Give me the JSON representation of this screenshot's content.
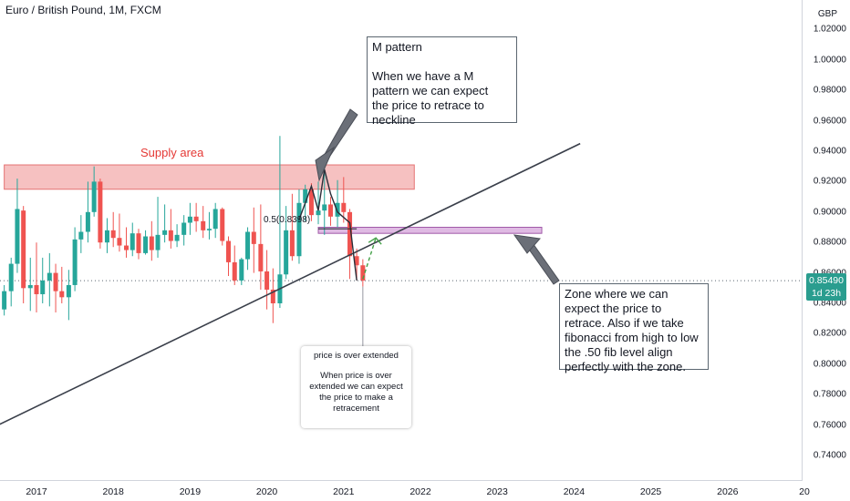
{
  "symbol_title": "Euro / British Pound, 1M, FXCM",
  "currency": "GBP",
  "last_price": {
    "price": "0.85490",
    "countdown": "1d 23h"
  },
  "annotations": {
    "supply_label": "Supply area",
    "fib_label": "0.5(0.8398)",
    "m_pattern_title": "M pattern",
    "m_pattern_lines": [
      "When we have a M",
      "pattern we can expect",
      "the price to retrace to",
      "neckline"
    ],
    "zone_lines": [
      "Zone where we can",
      "expect the price to",
      "retrace. Also if we take",
      "fibonacci from high to low",
      "the .50 fib level align",
      "perfectly with the zone."
    ],
    "bubble_title": "price is over extended",
    "bubble_lines": [
      "When price is over",
      "extended we can expect",
      "the price to make a",
      "retracement"
    ]
  },
  "colors": {
    "up": "#26a69a",
    "down": "#ef5350",
    "supply_zone": "#f4b6b6",
    "target_zone": "#d9aede",
    "badge": "#2a9d8f"
  },
  "chart_data": {
    "type": "candlestick",
    "title": "Euro / British Pound, 1M, FXCM",
    "ylabel": "GBP",
    "ylim": [
      0.73,
      1.03
    ],
    "y_ticks": [
      "0.74000",
      "0.76000",
      "0.78000",
      "0.80000",
      "0.82000",
      "0.84000",
      "0.86000",
      "0.88000",
      "0.90000",
      "0.92000",
      "0.94000",
      "0.96000",
      "0.98000",
      "1.00000",
      "1.02000"
    ],
    "x_ticks": [
      "2017",
      "2018",
      "2019",
      "2020",
      "2021",
      "2022",
      "2023",
      "2024",
      "2025",
      "2026",
      "20"
    ],
    "candles": [
      {
        "x": 2016.58,
        "o": 0.836,
        "h": 0.852,
        "l": 0.832,
        "c": 0.848
      },
      {
        "x": 2016.67,
        "o": 0.848,
        "h": 0.87,
        "l": 0.838,
        "c": 0.866
      },
      {
        "x": 2016.75,
        "o": 0.866,
        "h": 0.922,
        "l": 0.86,
        "c": 0.902
      },
      {
        "x": 2016.83,
        "o": 0.901,
        "h": 0.904,
        "l": 0.84,
        "c": 0.85
      },
      {
        "x": 2016.92,
        "o": 0.85,
        "h": 0.87,
        "l": 0.835,
        "c": 0.852
      },
      {
        "x": 2017.0,
        "o": 0.852,
        "h": 0.88,
        "l": 0.834,
        "c": 0.846
      },
      {
        "x": 2017.08,
        "o": 0.846,
        "h": 0.87,
        "l": 0.84,
        "c": 0.855
      },
      {
        "x": 2017.17,
        "o": 0.855,
        "h": 0.873,
        "l": 0.838,
        "c": 0.86
      },
      {
        "x": 2017.25,
        "o": 0.86,
        "h": 0.866,
        "l": 0.834,
        "c": 0.848
      },
      {
        "x": 2017.33,
        "o": 0.848,
        "h": 0.864,
        "l": 0.84,
        "c": 0.844
      },
      {
        "x": 2017.42,
        "o": 0.844,
        "h": 0.862,
        "l": 0.829,
        "c": 0.852
      },
      {
        "x": 2017.5,
        "o": 0.852,
        "h": 0.89,
        "l": 0.848,
        "c": 0.882
      },
      {
        "x": 2017.58,
        "o": 0.882,
        "h": 0.898,
        "l": 0.873,
        "c": 0.887
      },
      {
        "x": 2017.67,
        "o": 0.887,
        "h": 0.92,
        "l": 0.88,
        "c": 0.9
      },
      {
        "x": 2017.75,
        "o": 0.9,
        "h": 0.93,
        "l": 0.897,
        "c": 0.92
      },
      {
        "x": 2017.83,
        "o": 0.92,
        "h": 0.922,
        "l": 0.876,
        "c": 0.88
      },
      {
        "x": 2017.92,
        "o": 0.88,
        "h": 0.896,
        "l": 0.873,
        "c": 0.888
      },
      {
        "x": 2018.0,
        "o": 0.888,
        "h": 0.9,
        "l": 0.877,
        "c": 0.883
      },
      {
        "x": 2018.08,
        "o": 0.883,
        "h": 0.899,
        "l": 0.874,
        "c": 0.878
      },
      {
        "x": 2018.17,
        "o": 0.878,
        "h": 0.89,
        "l": 0.87,
        "c": 0.875
      },
      {
        "x": 2018.25,
        "o": 0.875,
        "h": 0.893,
        "l": 0.871,
        "c": 0.886
      },
      {
        "x": 2018.33,
        "o": 0.886,
        "h": 0.889,
        "l": 0.869,
        "c": 0.873
      },
      {
        "x": 2018.42,
        "o": 0.873,
        "h": 0.888,
        "l": 0.872,
        "c": 0.884
      },
      {
        "x": 2018.5,
        "o": 0.884,
        "h": 0.894,
        "l": 0.868,
        "c": 0.875
      },
      {
        "x": 2018.58,
        "o": 0.875,
        "h": 0.91,
        "l": 0.87,
        "c": 0.885
      },
      {
        "x": 2018.67,
        "o": 0.885,
        "h": 0.905,
        "l": 0.88,
        "c": 0.888
      },
      {
        "x": 2018.75,
        "o": 0.888,
        "h": 0.902,
        "l": 0.876,
        "c": 0.881
      },
      {
        "x": 2018.83,
        "o": 0.881,
        "h": 0.892,
        "l": 0.877,
        "c": 0.885
      },
      {
        "x": 2018.92,
        "o": 0.885,
        "h": 0.898,
        "l": 0.878,
        "c": 0.893
      },
      {
        "x": 2019.0,
        "o": 0.893,
        "h": 0.906,
        "l": 0.885,
        "c": 0.897
      },
      {
        "x": 2019.08,
        "o": 0.897,
        "h": 0.906,
        "l": 0.887,
        "c": 0.894
      },
      {
        "x": 2019.17,
        "o": 0.894,
        "h": 0.904,
        "l": 0.883,
        "c": 0.888
      },
      {
        "x": 2019.25,
        "o": 0.888,
        "h": 0.9,
        "l": 0.882,
        "c": 0.889
      },
      {
        "x": 2019.33,
        "o": 0.889,
        "h": 0.906,
        "l": 0.883,
        "c": 0.902
      },
      {
        "x": 2019.42,
        "o": 0.902,
        "h": 0.903,
        "l": 0.878,
        "c": 0.881
      },
      {
        "x": 2019.5,
        "o": 0.881,
        "h": 0.884,
        "l": 0.858,
        "c": 0.867
      },
      {
        "x": 2019.58,
        "o": 0.867,
        "h": 0.878,
        "l": 0.852,
        "c": 0.855
      },
      {
        "x": 2019.67,
        "o": 0.855,
        "h": 0.87,
        "l": 0.852,
        "c": 0.869
      },
      {
        "x": 2019.75,
        "o": 0.869,
        "h": 0.89,
        "l": 0.862,
        "c": 0.887
      },
      {
        "x": 2019.83,
        "o": 0.887,
        "h": 0.903,
        "l": 0.86,
        "c": 0.879
      },
      {
        "x": 2019.92,
        "o": 0.879,
        "h": 0.905,
        "l": 0.849,
        "c": 0.861
      },
      {
        "x": 2020.0,
        "o": 0.861,
        "h": 0.875,
        "l": 0.836,
        "c": 0.849
      },
      {
        "x": 2020.08,
        "o": 0.849,
        "h": 0.863,
        "l": 0.827,
        "c": 0.84
      },
      {
        "x": 2020.17,
        "o": 0.84,
        "h": 0.95,
        "l": 0.837,
        "c": 0.859
      },
      {
        "x": 2020.25,
        "o": 0.859,
        "h": 0.904,
        "l": 0.856,
        "c": 0.888
      },
      {
        "x": 2020.33,
        "o": 0.888,
        "h": 0.912,
        "l": 0.868,
        "c": 0.871
      },
      {
        "x": 2020.42,
        "o": 0.871,
        "h": 0.915,
        "l": 0.866,
        "c": 0.906
      },
      {
        "x": 2020.5,
        "o": 0.906,
        "h": 0.918,
        "l": 0.894,
        "c": 0.915
      },
      {
        "x": 2020.58,
        "o": 0.915,
        "h": 0.919,
        "l": 0.894,
        "c": 0.898
      },
      {
        "x": 2020.67,
        "o": 0.898,
        "h": 0.92,
        "l": 0.892,
        "c": 0.901
      },
      {
        "x": 2020.75,
        "o": 0.901,
        "h": 0.93,
        "l": 0.885,
        "c": 0.905
      },
      {
        "x": 2020.83,
        "o": 0.905,
        "h": 0.91,
        "l": 0.891,
        "c": 0.897
      },
      {
        "x": 2020.92,
        "o": 0.897,
        "h": 0.921,
        "l": 0.89,
        "c": 0.906
      },
      {
        "x": 2021.0,
        "o": 0.906,
        "h": 0.923,
        "l": 0.893,
        "c": 0.9
      },
      {
        "x": 2021.08,
        "o": 0.9,
        "h": 0.902,
        "l": 0.856,
        "c": 0.871
      },
      {
        "x": 2021.17,
        "o": 0.871,
        "h": 0.876,
        "l": 0.855,
        "c": 0.865
      },
      {
        "x": 2021.25,
        "o": 0.865,
        "h": 0.869,
        "l": 0.851,
        "c": 0.855
      }
    ],
    "supply_zone": {
      "x0": 2016.58,
      "x1": 2021.92,
      "y0": 0.915,
      "y1": 0.931
    },
    "target_zone": {
      "x0": 2020.67,
      "x1": 2023.58,
      "y0": 0.886,
      "y1": 0.89
    },
    "trendline": {
      "x0": 2016.5,
      "y0": 0.76,
      "x1": 2024.08,
      "y1": 0.945
    },
    "last_price_line": 0.8549,
    "m_pattern_path": [
      [
        2020.42,
        0.895
      ],
      [
        2020.58,
        0.917
      ],
      [
        2020.67,
        0.901
      ],
      [
        2020.75,
        0.928
      ],
      [
        2020.83,
        0.912
      ],
      [
        2020.92,
        0.9
      ],
      [
        2021.08,
        0.893
      ],
      [
        2021.17,
        0.855
      ]
    ],
    "neckline": {
      "x0": 2020.67,
      "x1": 2021.17,
      "y": 0.889
    },
    "retrace_arrow": {
      "x0": 2021.25,
      "y0": 0.856,
      "x1": 2021.42,
      "y1": 0.883
    }
  }
}
